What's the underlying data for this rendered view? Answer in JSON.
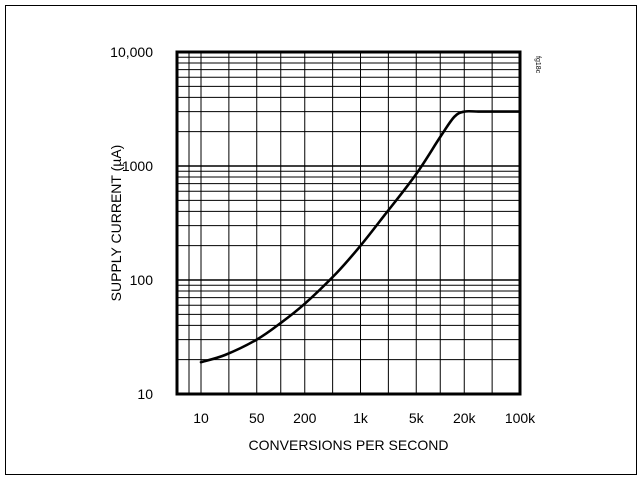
{
  "chart_data": {
    "type": "line",
    "xlabel": "CONVERSIONS PER SECOND",
    "ylabel": "SUPPLY CURRENT (µA)",
    "figure_id": "fg18c",
    "x_scale": "log",
    "y_scale": "log",
    "xlim": [
      5,
      100000
    ],
    "ylim": [
      10,
      10000
    ],
    "grid": true,
    "x_ticks": [
      {
        "value": 10,
        "label": "10"
      },
      {
        "value": 50,
        "label": "50"
      },
      {
        "value": 200,
        "label": "200"
      },
      {
        "value": 1000,
        "label": "1k"
      },
      {
        "value": 5000,
        "label": "5k"
      },
      {
        "value": 20000,
        "label": "20k"
      },
      {
        "value": 100000,
        "label": "100k"
      }
    ],
    "y_ticks": [
      {
        "value": 10,
        "label": "10"
      },
      {
        "value": 100,
        "label": "100"
      },
      {
        "value": 1000,
        "label": "1000"
      },
      {
        "value": 10000,
        "label": "10,000"
      }
    ],
    "series": [
      {
        "x": [
          10,
          20,
          50,
          100,
          200,
          500,
          1000,
          2000,
          5000,
          10000,
          15000,
          20000,
          30000,
          50000,
          100000
        ],
        "y": [
          19,
          22,
          30,
          42,
          62,
          115,
          200,
          370,
          850,
          1800,
          2700,
          3000,
          3000,
          3000,
          3000
        ]
      }
    ]
  }
}
